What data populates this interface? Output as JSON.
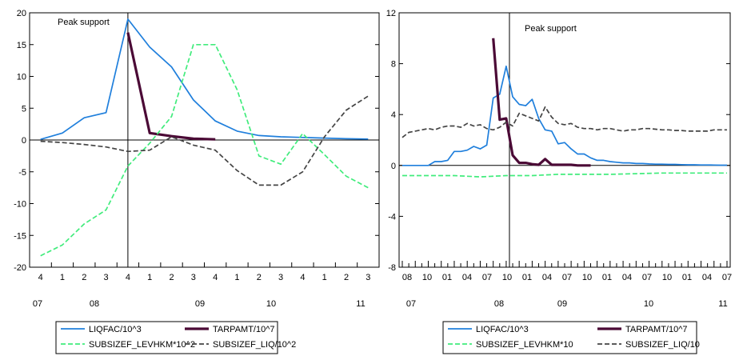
{
  "chart_data": [
    {
      "type": "line",
      "annotation": "Peak support",
      "y_ticks": [
        "20",
        "15",
        "10",
        "5",
        "0",
        "-5",
        "-10",
        "-15",
        "-20"
      ],
      "ylim": [
        -20,
        20
      ],
      "grid": false,
      "x_tick_labels": [
        "4",
        "1",
        "2",
        "3",
        "4",
        "1",
        "2",
        "3",
        "4",
        "1",
        "2",
        "3",
        "4",
        "1",
        "2",
        "3"
      ],
      "year_labels": [
        "07",
        "08",
        "09",
        "10",
        "11"
      ],
      "legend_position": "bottom",
      "legend": [
        "LIQFAC/10^3",
        "TARPAMT/10^7",
        "SUBSIZEF_LEVHKM*10^2",
        "SUBSIZEF_LIQ/10^2"
      ],
      "series": [
        {
          "name": "LIQFAC/10^3",
          "color": "#1f7fdc",
          "style": "solid",
          "points": [
            [
              0,
              0.1
            ],
            [
              1,
              1.1
            ],
            [
              2,
              3.5
            ],
            [
              3,
              4.3
            ],
            [
              4,
              19.0
            ],
            [
              5,
              14.6
            ],
            [
              6,
              11.5
            ],
            [
              7,
              6.3
            ],
            [
              8,
              3.0
            ],
            [
              9,
              1.4
            ],
            [
              10,
              0.7
            ],
            [
              11,
              0.5
            ],
            [
              12,
              0.4
            ],
            [
              13,
              0.3
            ],
            [
              14,
              0.2
            ],
            [
              15,
              0.15
            ]
          ]
        },
        {
          "name": "TARPAMT/10^7",
          "color": "#4b0a36",
          "style": "thick",
          "points": [
            [
              4,
              16.9
            ],
            [
              5,
              1.1
            ],
            [
              6,
              0.6
            ],
            [
              7,
              0.2
            ],
            [
              8,
              0.1
            ]
          ]
        },
        {
          "name": "SUBSIZEF_LEVHKM*10^2",
          "color": "#41ec7c",
          "style": "dashed",
          "points": [
            [
              0,
              -18.2
            ],
            [
              1,
              -16.5
            ],
            [
              2,
              -13.2
            ],
            [
              3,
              -11.0
            ],
            [
              4,
              -4.1
            ],
            [
              5,
              -0.5
            ],
            [
              6,
              3.7
            ],
            [
              7,
              15.0
            ],
            [
              8,
              15.0
            ],
            [
              9,
              7.9
            ],
            [
              10,
              -2.5
            ],
            [
              11,
              -3.8
            ],
            [
              12,
              1.0
            ],
            [
              13,
              -2.3
            ],
            [
              14,
              -5.7
            ],
            [
              15,
              -7.5
            ]
          ]
        },
        {
          "name": "SUBSIZEF_LIQ/10^2",
          "color": "#444444",
          "style": "dashed",
          "points": [
            [
              0,
              -0.2
            ],
            [
              1,
              -0.4
            ],
            [
              2,
              -0.7
            ],
            [
              3,
              -1.1
            ],
            [
              4,
              -1.8
            ],
            [
              5,
              -1.6
            ],
            [
              6,
              0.5
            ],
            [
              7,
              -0.8
            ],
            [
              8,
              -1.6
            ],
            [
              9,
              -4.8
            ],
            [
              10,
              -7.1
            ],
            [
              11,
              -7.1
            ],
            [
              12,
              -5.0
            ],
            [
              13,
              0.5
            ],
            [
              14,
              4.7
            ],
            [
              15,
              6.9
            ]
          ]
        }
      ]
    },
    {
      "type": "line",
      "annotation": "Peak support",
      "y_ticks": [
        "12",
        "8",
        "4",
        "0",
        "-4",
        "-8"
      ],
      "ylim": [
        -8,
        12
      ],
      "grid": false,
      "x_tick_labels": [
        "08",
        "10",
        "01",
        "04",
        "07",
        "10",
        "01",
        "04",
        "07",
        "10",
        "01",
        "04",
        "07",
        "10",
        "01",
        "04",
        "07"
      ],
      "year_labels": [
        "07",
        "08",
        "09",
        "10",
        "11"
      ],
      "legend_position": "bottom",
      "legend": [
        "LIQFAC/10^3",
        "TARPAMT/10^7",
        "SUBSIZEF_LEVHKM*10",
        "SUBSIZEF_LIQ/10"
      ],
      "series": [
        {
          "name": "LIQFAC/10^3",
          "color": "#1f7fdc",
          "style": "solid",
          "points": [
            [
              0,
              0
            ],
            [
              1,
              0
            ],
            [
              2,
              0
            ],
            [
              3,
              0
            ],
            [
              4,
              0
            ],
            [
              5,
              0.3
            ],
            [
              6,
              0.3
            ],
            [
              7,
              0.4
            ],
            [
              8,
              1.1
            ],
            [
              9,
              1.1
            ],
            [
              10,
              1.2
            ],
            [
              11,
              1.5
            ],
            [
              12,
              1.3
            ],
            [
              13,
              1.6
            ],
            [
              14,
              5.3
            ],
            [
              15,
              5.6
            ],
            [
              16,
              7.8
            ],
            [
              17,
              5.4
            ],
            [
              18,
              4.8
            ],
            [
              19,
              4.7
            ],
            [
              20,
              5.2
            ],
            [
              21,
              3.7
            ],
            [
              22,
              2.8
            ],
            [
              23,
              2.7
            ],
            [
              24,
              1.7
            ],
            [
              25,
              1.8
            ],
            [
              26,
              1.3
            ],
            [
              27,
              0.9
            ],
            [
              28,
              0.9
            ],
            [
              29,
              0.6
            ],
            [
              30,
              0.4
            ],
            [
              31,
              0.4
            ],
            [
              32,
              0.3
            ],
            [
              33,
              0.25
            ],
            [
              34,
              0.2
            ],
            [
              35,
              0.2
            ],
            [
              36,
              0.15
            ],
            [
              37,
              0.15
            ],
            [
              38,
              0.12
            ],
            [
              39,
              0.1
            ],
            [
              40,
              0.1
            ],
            [
              41,
              0.08
            ],
            [
              42,
              0.08
            ],
            [
              43,
              0.06
            ],
            [
              44,
              0.05
            ],
            [
              45,
              0.05
            ],
            [
              46,
              0.04
            ],
            [
              47,
              0.04
            ],
            [
              48,
              0.03
            ],
            [
              49,
              0.02
            ],
            [
              50,
              0.02
            ]
          ]
        },
        {
          "name": "TARPAMT/10^7",
          "color": "#4b0a36",
          "style": "thick",
          "points": [
            [
              14,
              10.0
            ],
            [
              15,
              3.6
            ],
            [
              16,
              3.7
            ],
            [
              17,
              0.8
            ],
            [
              18,
              0.2
            ],
            [
              19,
              0.2
            ],
            [
              20,
              0.1
            ],
            [
              21,
              0.05
            ],
            [
              22,
              0.5
            ],
            [
              23,
              0.05
            ],
            [
              24,
              0.05
            ],
            [
              25,
              0.05
            ],
            [
              26,
              0.05
            ],
            [
              27,
              0
            ],
            [
              28,
              0
            ],
            [
              29,
              0
            ]
          ]
        },
        {
          "name": "SUBSIZEF_LEVHKM*10",
          "color": "#41ec7c",
          "style": "dashed",
          "points": [
            [
              0,
              -0.8
            ],
            [
              4,
              -0.8
            ],
            [
              8,
              -0.8
            ],
            [
              12,
              -0.9
            ],
            [
              16,
              -0.8
            ],
            [
              20,
              -0.8
            ],
            [
              24,
              -0.7
            ],
            [
              28,
              -0.7
            ],
            [
              32,
              -0.7
            ],
            [
              36,
              -0.65
            ],
            [
              40,
              -0.6
            ],
            [
              44,
              -0.6
            ],
            [
              48,
              -0.6
            ],
            [
              50,
              -0.6
            ]
          ]
        },
        {
          "name": "SUBSIZEF_LIQ/10",
          "color": "#444444",
          "style": "dashed",
          "points": [
            [
              0,
              2.2
            ],
            [
              1,
              2.6
            ],
            [
              2,
              2.7
            ],
            [
              3,
              2.8
            ],
            [
              4,
              2.9
            ],
            [
              5,
              2.8
            ],
            [
              6,
              3.0
            ],
            [
              7,
              3.1
            ],
            [
              8,
              3.1
            ],
            [
              9,
              3.0
            ],
            [
              10,
              3.3
            ],
            [
              11,
              3.1
            ],
            [
              12,
              3.2
            ],
            [
              13,
              2.9
            ],
            [
              14,
              2.8
            ],
            [
              15,
              3.0
            ],
            [
              16,
              3.4
            ],
            [
              17,
              3.1
            ],
            [
              18,
              4.1
            ],
            [
              19,
              3.9
            ],
            [
              20,
              3.7
            ],
            [
              21,
              3.5
            ],
            [
              22,
              4.6
            ],
            [
              23,
              3.8
            ],
            [
              24,
              3.3
            ],
            [
              25,
              3.2
            ],
            [
              26,
              3.3
            ],
            [
              27,
              3.0
            ],
            [
              28,
              2.9
            ],
            [
              29,
              2.9
            ],
            [
              30,
              2.8
            ],
            [
              31,
              2.9
            ],
            [
              32,
              2.9
            ],
            [
              33,
              2.8
            ],
            [
              34,
              2.7
            ],
            [
              35,
              2.8
            ],
            [
              36,
              2.8
            ],
            [
              37,
              2.9
            ],
            [
              38,
              2.9
            ],
            [
              39,
              2.85
            ],
            [
              40,
              2.8
            ],
            [
              41,
              2.8
            ],
            [
              42,
              2.75
            ],
            [
              43,
              2.75
            ],
            [
              44,
              2.7
            ],
            [
              45,
              2.7
            ],
            [
              46,
              2.7
            ],
            [
              47,
              2.7
            ],
            [
              48,
              2.8
            ],
            [
              49,
              2.8
            ],
            [
              50,
              2.8
            ]
          ]
        }
      ]
    }
  ]
}
